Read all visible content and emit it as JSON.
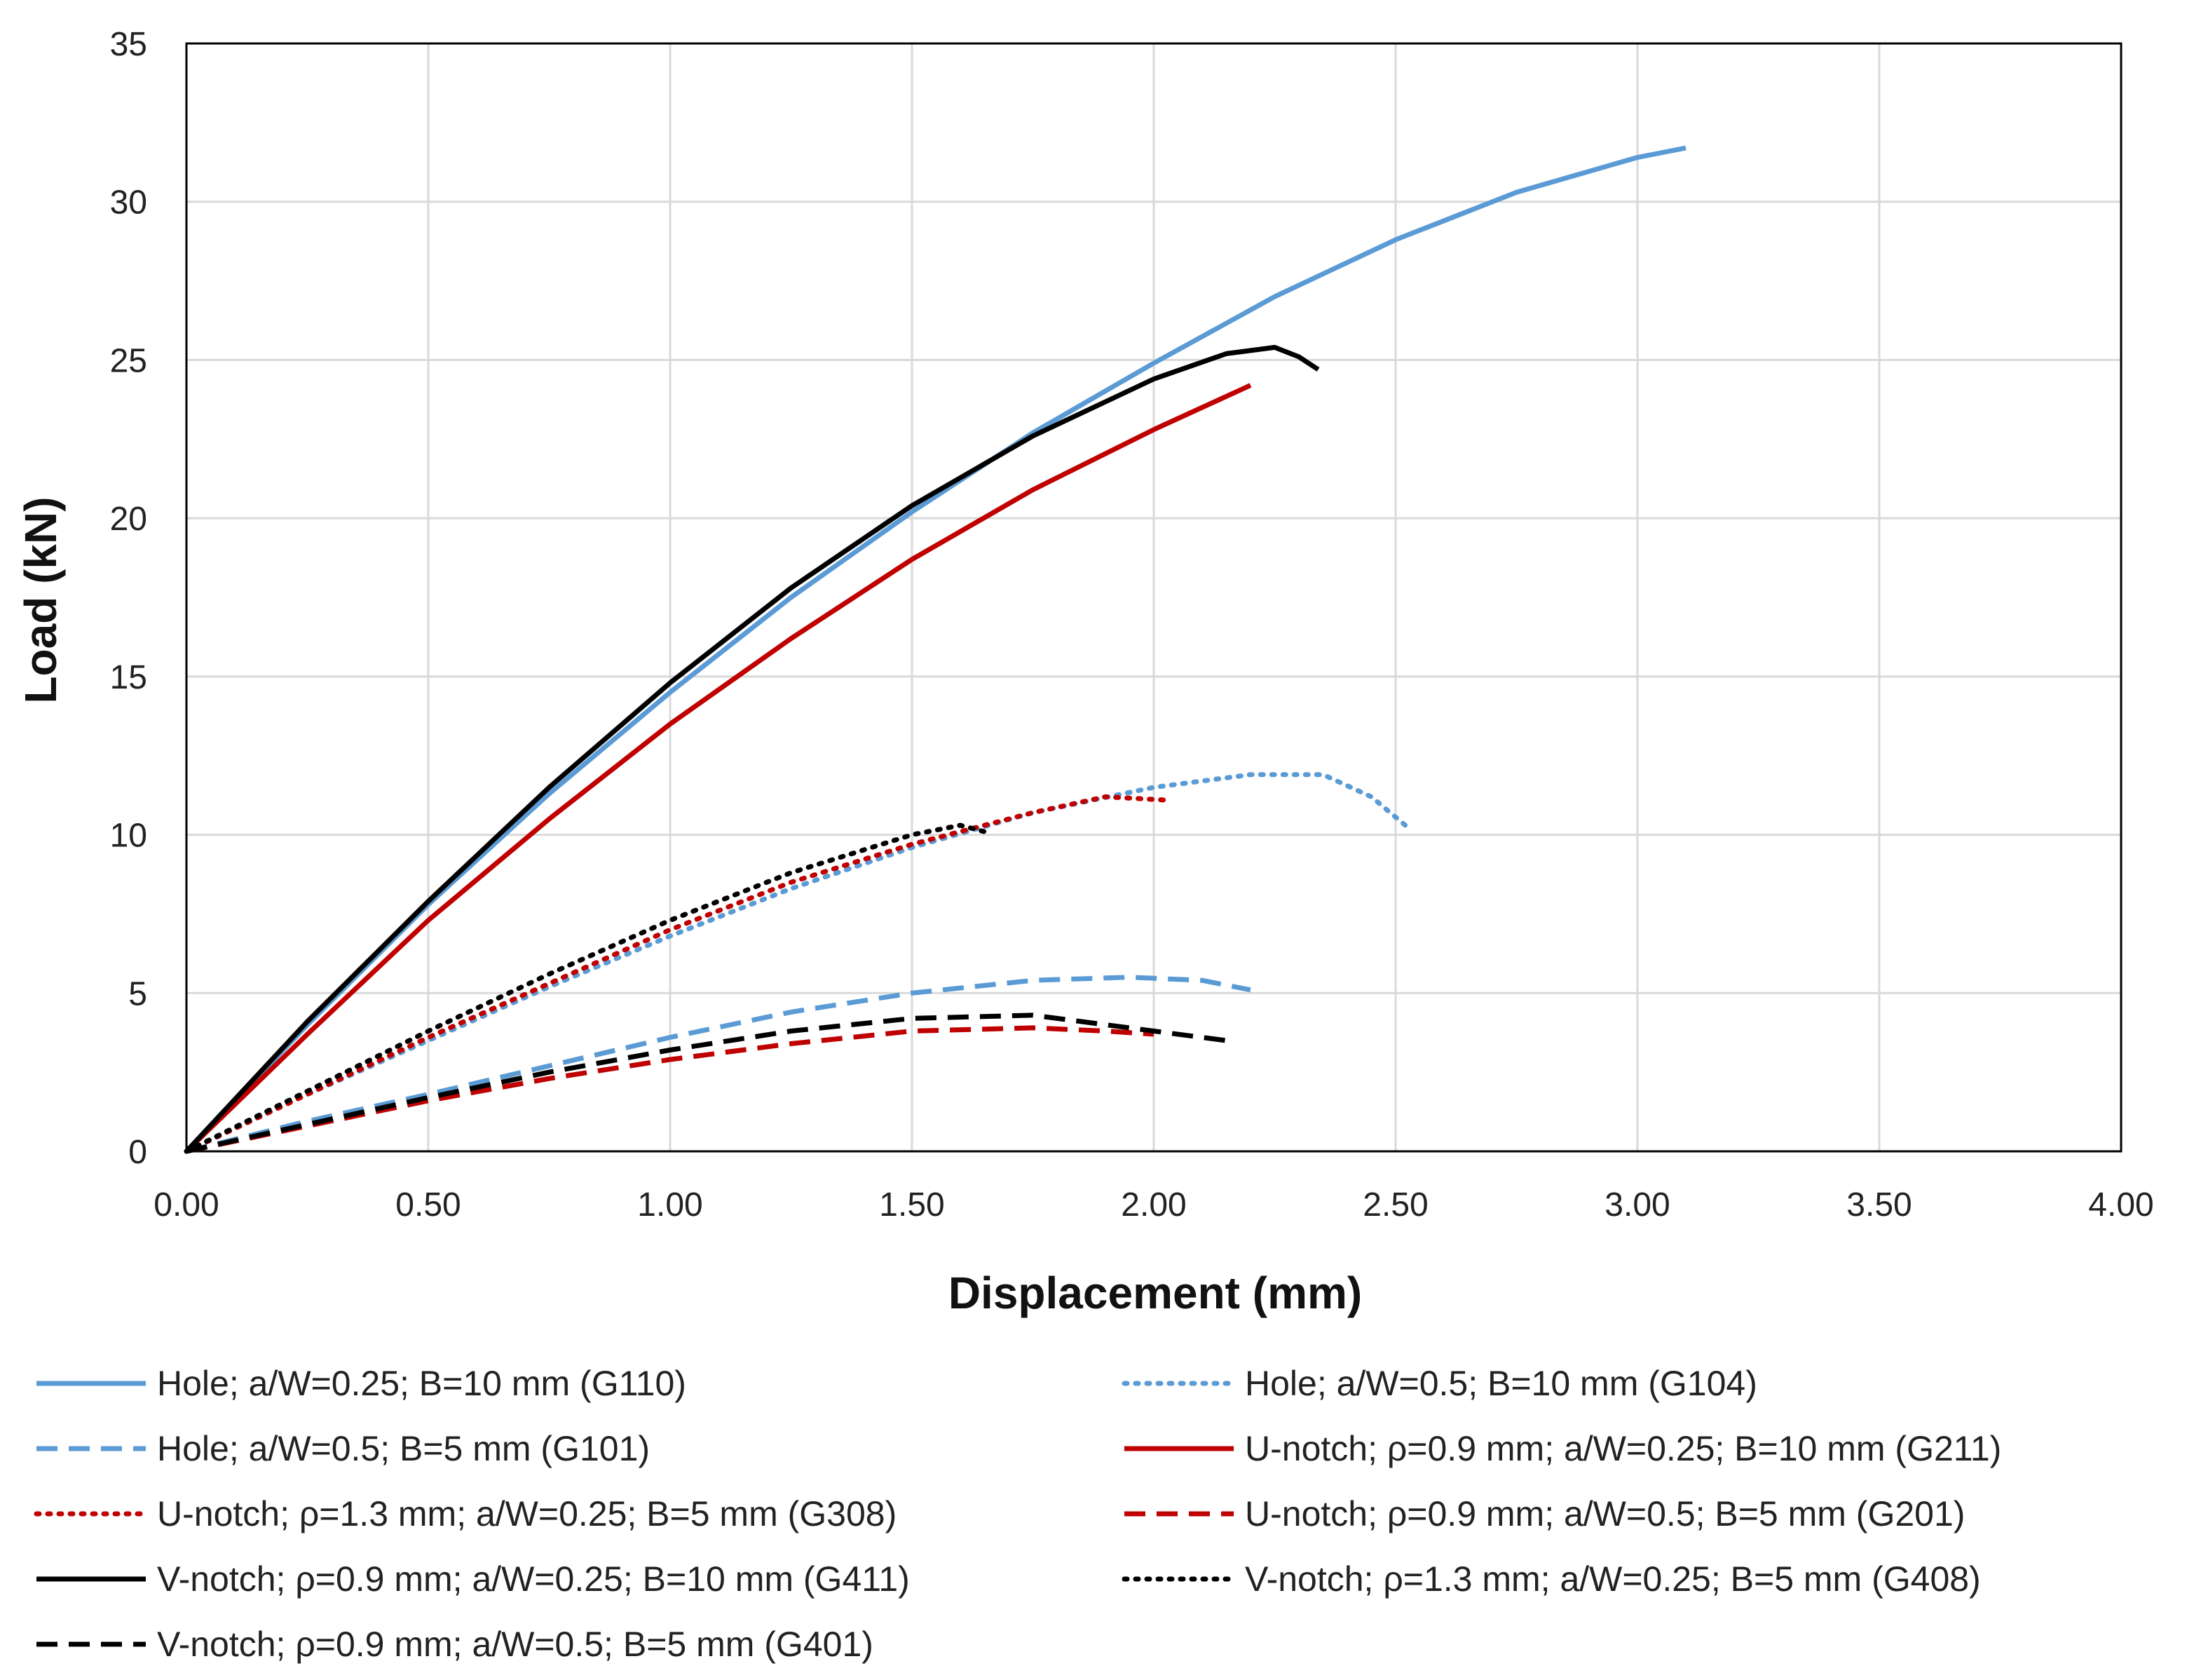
{
  "chart_data": {
    "type": "line",
    "title": "",
    "xlabel": "Displacement (mm)",
    "ylabel": "Load (kN)",
    "xlim": [
      0,
      4
    ],
    "ylim": [
      0,
      35
    ],
    "x_ticks": [
      "0.00",
      "0.50",
      "1.00",
      "1.50",
      "2.00",
      "2.50",
      "3.00",
      "3.50",
      "4.00"
    ],
    "y_ticks": [
      "0",
      "5",
      "10",
      "15",
      "20",
      "25",
      "30",
      "35"
    ],
    "grid": true,
    "legend_position": "bottom",
    "series": [
      {
        "name": "Hole; a/W=0.25; B=10 mm (G110)",
        "color": "#5b9bd5",
        "style": "solid",
        "x": [
          0,
          0.25,
          0.5,
          0.75,
          1.0,
          1.25,
          1.5,
          1.75,
          2.0,
          2.25,
          2.5,
          2.75,
          3.0,
          3.1
        ],
        "y": [
          0,
          4.0,
          7.8,
          11.3,
          14.5,
          17.5,
          20.2,
          22.7,
          24.9,
          27.0,
          28.8,
          30.3,
          31.4,
          31.7
        ]
      },
      {
        "name": "Hole; a/W=0.5; B=10 mm (G104)",
        "color": "#5b9bd5",
        "style": "dotted",
        "x": [
          0,
          0.25,
          0.5,
          0.75,
          1.0,
          1.25,
          1.5,
          1.75,
          2.0,
          2.2,
          2.35,
          2.45,
          2.52
        ],
        "y": [
          0,
          1.8,
          3.5,
          5.2,
          6.8,
          8.3,
          9.6,
          10.7,
          11.5,
          11.9,
          11.9,
          11.2,
          10.3
        ]
      },
      {
        "name": "Hole; a/W=0.5; B=5 mm (G101)",
        "color": "#5b9bd5",
        "style": "dashed",
        "x": [
          0,
          0.25,
          0.5,
          0.75,
          1.0,
          1.25,
          1.5,
          1.75,
          1.95,
          2.1,
          2.2
        ],
        "y": [
          0,
          0.95,
          1.8,
          2.7,
          3.6,
          4.4,
          5.0,
          5.4,
          5.5,
          5.4,
          5.1
        ]
      },
      {
        "name": "U-notch; ρ=0.9 mm; a/W=0.25; B=10 mm (G211)",
        "color": "#c00000",
        "style": "solid",
        "x": [
          0,
          0.25,
          0.5,
          0.75,
          1.0,
          1.25,
          1.5,
          1.75,
          2.0,
          2.2
        ],
        "y": [
          0,
          3.7,
          7.3,
          10.5,
          13.5,
          16.2,
          18.7,
          20.9,
          22.8,
          24.2
        ]
      },
      {
        "name": "U-notch; ρ=1.3 mm; a/W=0.25; B=5 mm (G308)",
        "color": "#c00000",
        "style": "dotted",
        "x": [
          0,
          0.25,
          0.5,
          0.75,
          1.0,
          1.25,
          1.5,
          1.75,
          1.9,
          2.02
        ],
        "y": [
          0,
          1.8,
          3.6,
          5.3,
          7.0,
          8.5,
          9.7,
          10.7,
          11.2,
          11.1
        ]
      },
      {
        "name": "U-notch; ρ=0.9 mm; a/W=0.5; B=5 mm (G201)",
        "color": "#c00000",
        "style": "dashed",
        "x": [
          0,
          0.25,
          0.5,
          0.75,
          1.0,
          1.25,
          1.5,
          1.75,
          1.9,
          2.0
        ],
        "y": [
          0,
          0.8,
          1.6,
          2.3,
          2.9,
          3.4,
          3.8,
          3.9,
          3.8,
          3.7
        ]
      },
      {
        "name": "V-notch; ρ=0.9 mm; a/W=0.25; B=10 mm (G411)",
        "color": "#000000",
        "style": "solid",
        "x": [
          0,
          0.25,
          0.5,
          0.75,
          1.0,
          1.25,
          1.5,
          1.75,
          2.0,
          2.15,
          2.25,
          2.3,
          2.34
        ],
        "y": [
          0,
          4.1,
          7.9,
          11.5,
          14.8,
          17.8,
          20.4,
          22.6,
          24.4,
          25.2,
          25.4,
          25.1,
          24.7
        ]
      },
      {
        "name": "V-notch; ρ=1.3 mm; a/W=0.25; B=5 mm (G408)",
        "color": "#000000",
        "style": "dotted",
        "x": [
          0,
          0.25,
          0.5,
          0.75,
          1.0,
          1.25,
          1.5,
          1.6,
          1.65
        ],
        "y": [
          0,
          1.9,
          3.8,
          5.6,
          7.3,
          8.8,
          10.0,
          10.3,
          10.1
        ]
      },
      {
        "name": "V-notch; ρ=0.9 mm; a/W=0.5; B=5 mm (G401)",
        "color": "#000000",
        "style": "dashed",
        "x": [
          0,
          0.25,
          0.5,
          0.75,
          1.0,
          1.25,
          1.5,
          1.75,
          1.85,
          2.0,
          2.15
        ],
        "y": [
          0,
          0.85,
          1.7,
          2.5,
          3.2,
          3.8,
          4.2,
          4.3,
          4.1,
          3.8,
          3.5
        ]
      }
    ]
  }
}
